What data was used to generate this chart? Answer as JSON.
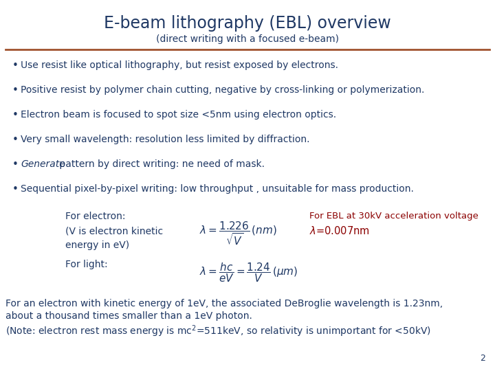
{
  "title": "E-beam lithography (EBL) overview",
  "subtitle": "(direct writing with a focused e-beam)",
  "title_color": "#1F3864",
  "subtitle_color": "#1F3864",
  "line_color": "#A0522D",
  "bullet_color": "#1F3864",
  "bullet_points": [
    "Use resist like optical lithography, but resist exposed by electrons.",
    "Positive resist by polymer chain cutting, negative by cross-linking or polymerization.",
    "Electron beam is focused to spot size <5nm using electron optics.",
    "Very small wavelength: resolution less limited by diffraction.",
    "Generate pattern by direct writing: ne need of mask.",
    "Sequential pixel-by-pixel writing: low throughput , unsuitable for mass production."
  ],
  "bg_color": "#FFFFFF",
  "highlight_color": "#8B0000",
  "page_number": "2",
  "title_fontsize": 17,
  "subtitle_fontsize": 10,
  "bullet_fontsize": 10,
  "formula_fontsize": 11,
  "footer_fontsize": 10
}
